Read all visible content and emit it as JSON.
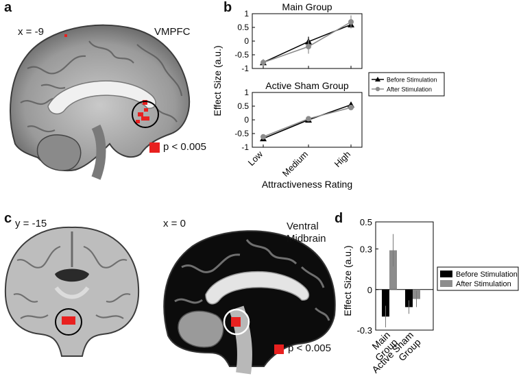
{
  "panel_letters": {
    "a": "a",
    "b": "b",
    "c": "c",
    "d": "d"
  },
  "panel_a": {
    "coord_label": "x = -9",
    "region_label": "VMPFC",
    "legend_text": "p < 0.005",
    "legend_color": "#e8201f"
  },
  "panel_c": {
    "coronal_coord_label": "y = -15",
    "sagittal_coord_label": "x = 0",
    "region_label_line1": "Ventral",
    "region_label_line2": "Midbrain",
    "legend_text": "p < 0.005",
    "legend_color": "#e8201f"
  },
  "chart_data": [
    {
      "type": "line",
      "title": "Main Group",
      "categories": [
        "Low",
        "Medium",
        "High"
      ],
      "ylim": [
        -1,
        1
      ],
      "yticks": [
        "-1",
        "-0.5",
        "0",
        "0.5",
        "1"
      ],
      "series": [
        {
          "name": "Before Stimulation",
          "values": [
            -0.78,
            -0.02,
            0.6
          ],
          "errors": [
            0.1,
            0.18,
            0.12
          ],
          "color": "#000000",
          "marker": "triangle"
        },
        {
          "name": "After Stimulation",
          "values": [
            -0.78,
            -0.2,
            0.7
          ],
          "errors": [
            0.12,
            0.26,
            0.24
          ],
          "color": "#8c8c8c",
          "marker": "circle"
        }
      ]
    },
    {
      "type": "line",
      "title": "Active Sham Group",
      "categories": [
        "Low",
        "Medium",
        "High"
      ],
      "ylim": [
        -1,
        1
      ],
      "yticks": [
        "-1",
        "-0.5",
        "0",
        "0.5",
        "1"
      ],
      "series": [
        {
          "name": "Before Stimulation",
          "values": [
            -0.68,
            0.0,
            0.55
          ],
          "errors": [
            0.08,
            0.08,
            0.1
          ],
          "color": "#000000",
          "marker": "triangle"
        },
        {
          "name": "After Stimulation",
          "values": [
            -0.62,
            0.04,
            0.45
          ],
          "errors": [
            0.08,
            0.08,
            0.1
          ],
          "color": "#8c8c8c",
          "marker": "circle"
        }
      ]
    },
    {
      "type": "bar",
      "categories": [
        "Main Group",
        "Active Sham Group"
      ],
      "category_label_lines": [
        [
          "Main",
          "Group"
        ],
        [
          "Active Sham",
          "Group"
        ]
      ],
      "ylim": [
        -0.3,
        0.5
      ],
      "yticks": [
        "-0.3",
        "0",
        "0.3",
        "0.5"
      ],
      "ylabel": "Effect Size (a.u.)",
      "series": [
        {
          "name": "Before Stimulation",
          "values": [
            -0.2,
            -0.13
          ],
          "errors": [
            0.08,
            0.05
          ],
          "color": "#000000"
        },
        {
          "name": "After Stimulation",
          "values": [
            0.29,
            -0.07
          ],
          "errors": [
            0.12,
            0.06
          ],
          "color": "#8c8c8c"
        }
      ]
    }
  ],
  "panel_b_shared": {
    "ylabel": "Effect Size (a.u.)",
    "xlabel": "Attractiveness Rating",
    "legend": [
      "Before Stimulation",
      "After Stimulation"
    ]
  }
}
